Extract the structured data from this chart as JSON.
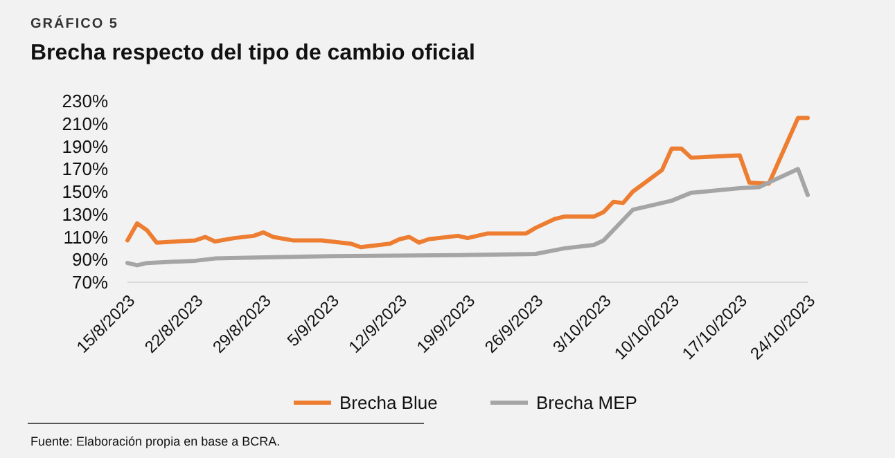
{
  "chart_data": {
    "type": "line",
    "title": "Brecha respecto del tipo de cambio oficial",
    "subtitle": "GRÁFICO 5",
    "annotations": [
      "Fuente: Elaboración propia en base a BCRA."
    ],
    "xlim": [
      "2023-08-15",
      "2023-10-24"
    ],
    "xticks": [
      {
        "value": "2023-08-15",
        "label": "15/8/2023"
      },
      {
        "value": "2023-08-22",
        "label": "22/8/2023"
      },
      {
        "value": "2023-08-29",
        "label": "29/8/2023"
      },
      {
        "value": "2023-09-05",
        "label": "5/9/2023"
      },
      {
        "value": "2023-09-12",
        "label": "12/9/2023"
      },
      {
        "value": "2023-09-19",
        "label": "19/9/2023"
      },
      {
        "value": "2023-09-26",
        "label": "26/9/2023"
      },
      {
        "value": "2023-10-03",
        "label": "3/10/2023"
      },
      {
        "value": "2023-10-10",
        "label": "10/10/2023"
      },
      {
        "value": "2023-10-17",
        "label": "17/10/2023"
      },
      {
        "value": "2023-10-24",
        "label": "24/10/2023"
      }
    ],
    "ylim": [
      70,
      230
    ],
    "yticks": [
      {
        "value": 70,
        "label": "70%"
      },
      {
        "value": 90,
        "label": "90%"
      },
      {
        "value": 110,
        "label": "110%"
      },
      {
        "value": 130,
        "label": "130%"
      },
      {
        "value": 150,
        "label": "150%"
      },
      {
        "value": 170,
        "label": "170%"
      },
      {
        "value": 190,
        "label": "190%"
      },
      {
        "value": 210,
        "label": "210%"
      },
      {
        "value": 230,
        "label": "230%"
      }
    ],
    "grid": false,
    "legend": "bottom",
    "marker": "none",
    "line_style": "solid",
    "series": [
      {
        "name": "Brecha Blue",
        "color": "#ed7d31",
        "x": [
          "2023-08-15",
          "2023-08-16",
          "2023-08-17",
          "2023-08-18",
          "2023-08-22",
          "2023-08-23",
          "2023-08-24",
          "2023-08-26",
          "2023-08-28",
          "2023-08-29",
          "2023-08-30",
          "2023-09-01",
          "2023-09-04",
          "2023-09-06",
          "2023-09-07",
          "2023-09-08",
          "2023-09-11",
          "2023-09-12",
          "2023-09-13",
          "2023-09-14",
          "2023-09-15",
          "2023-09-18",
          "2023-09-19",
          "2023-09-21",
          "2023-09-25",
          "2023-09-26",
          "2023-09-28",
          "2023-09-29",
          "2023-10-02",
          "2023-10-03",
          "2023-10-04",
          "2023-10-05",
          "2023-10-06",
          "2023-10-09",
          "2023-10-10",
          "2023-10-11",
          "2023-10-12",
          "2023-10-17",
          "2023-10-18",
          "2023-10-20",
          "2023-10-23",
          "2023-10-24"
        ],
        "values": [
          107,
          122,
          116,
          105,
          107,
          110,
          106,
          109,
          111,
          114,
          110,
          107,
          107,
          105,
          104,
          101,
          104,
          108,
          110,
          105,
          108,
          111,
          109,
          113,
          113,
          118,
          126,
          128,
          128,
          132,
          141,
          140,
          150,
          169,
          188,
          188,
          180,
          182,
          158,
          157,
          215,
          215
        ]
      },
      {
        "name": "Brecha MEP",
        "color": "#a5a5a5",
        "x": [
          "2023-08-15",
          "2023-08-16",
          "2023-08-17",
          "2023-08-22",
          "2023-08-24",
          "2023-08-29",
          "2023-09-05",
          "2023-09-18",
          "2023-09-26",
          "2023-09-29",
          "2023-10-02",
          "2023-10-03",
          "2023-10-06",
          "2023-10-10",
          "2023-10-12",
          "2023-10-17",
          "2023-10-19",
          "2023-10-20",
          "2023-10-23",
          "2023-10-24"
        ],
        "values": [
          87,
          85,
          87,
          89,
          91,
          92,
          93,
          94,
          95,
          100,
          103,
          107,
          134,
          142,
          149,
          153,
          154,
          158,
          170,
          147
        ]
      }
    ]
  }
}
